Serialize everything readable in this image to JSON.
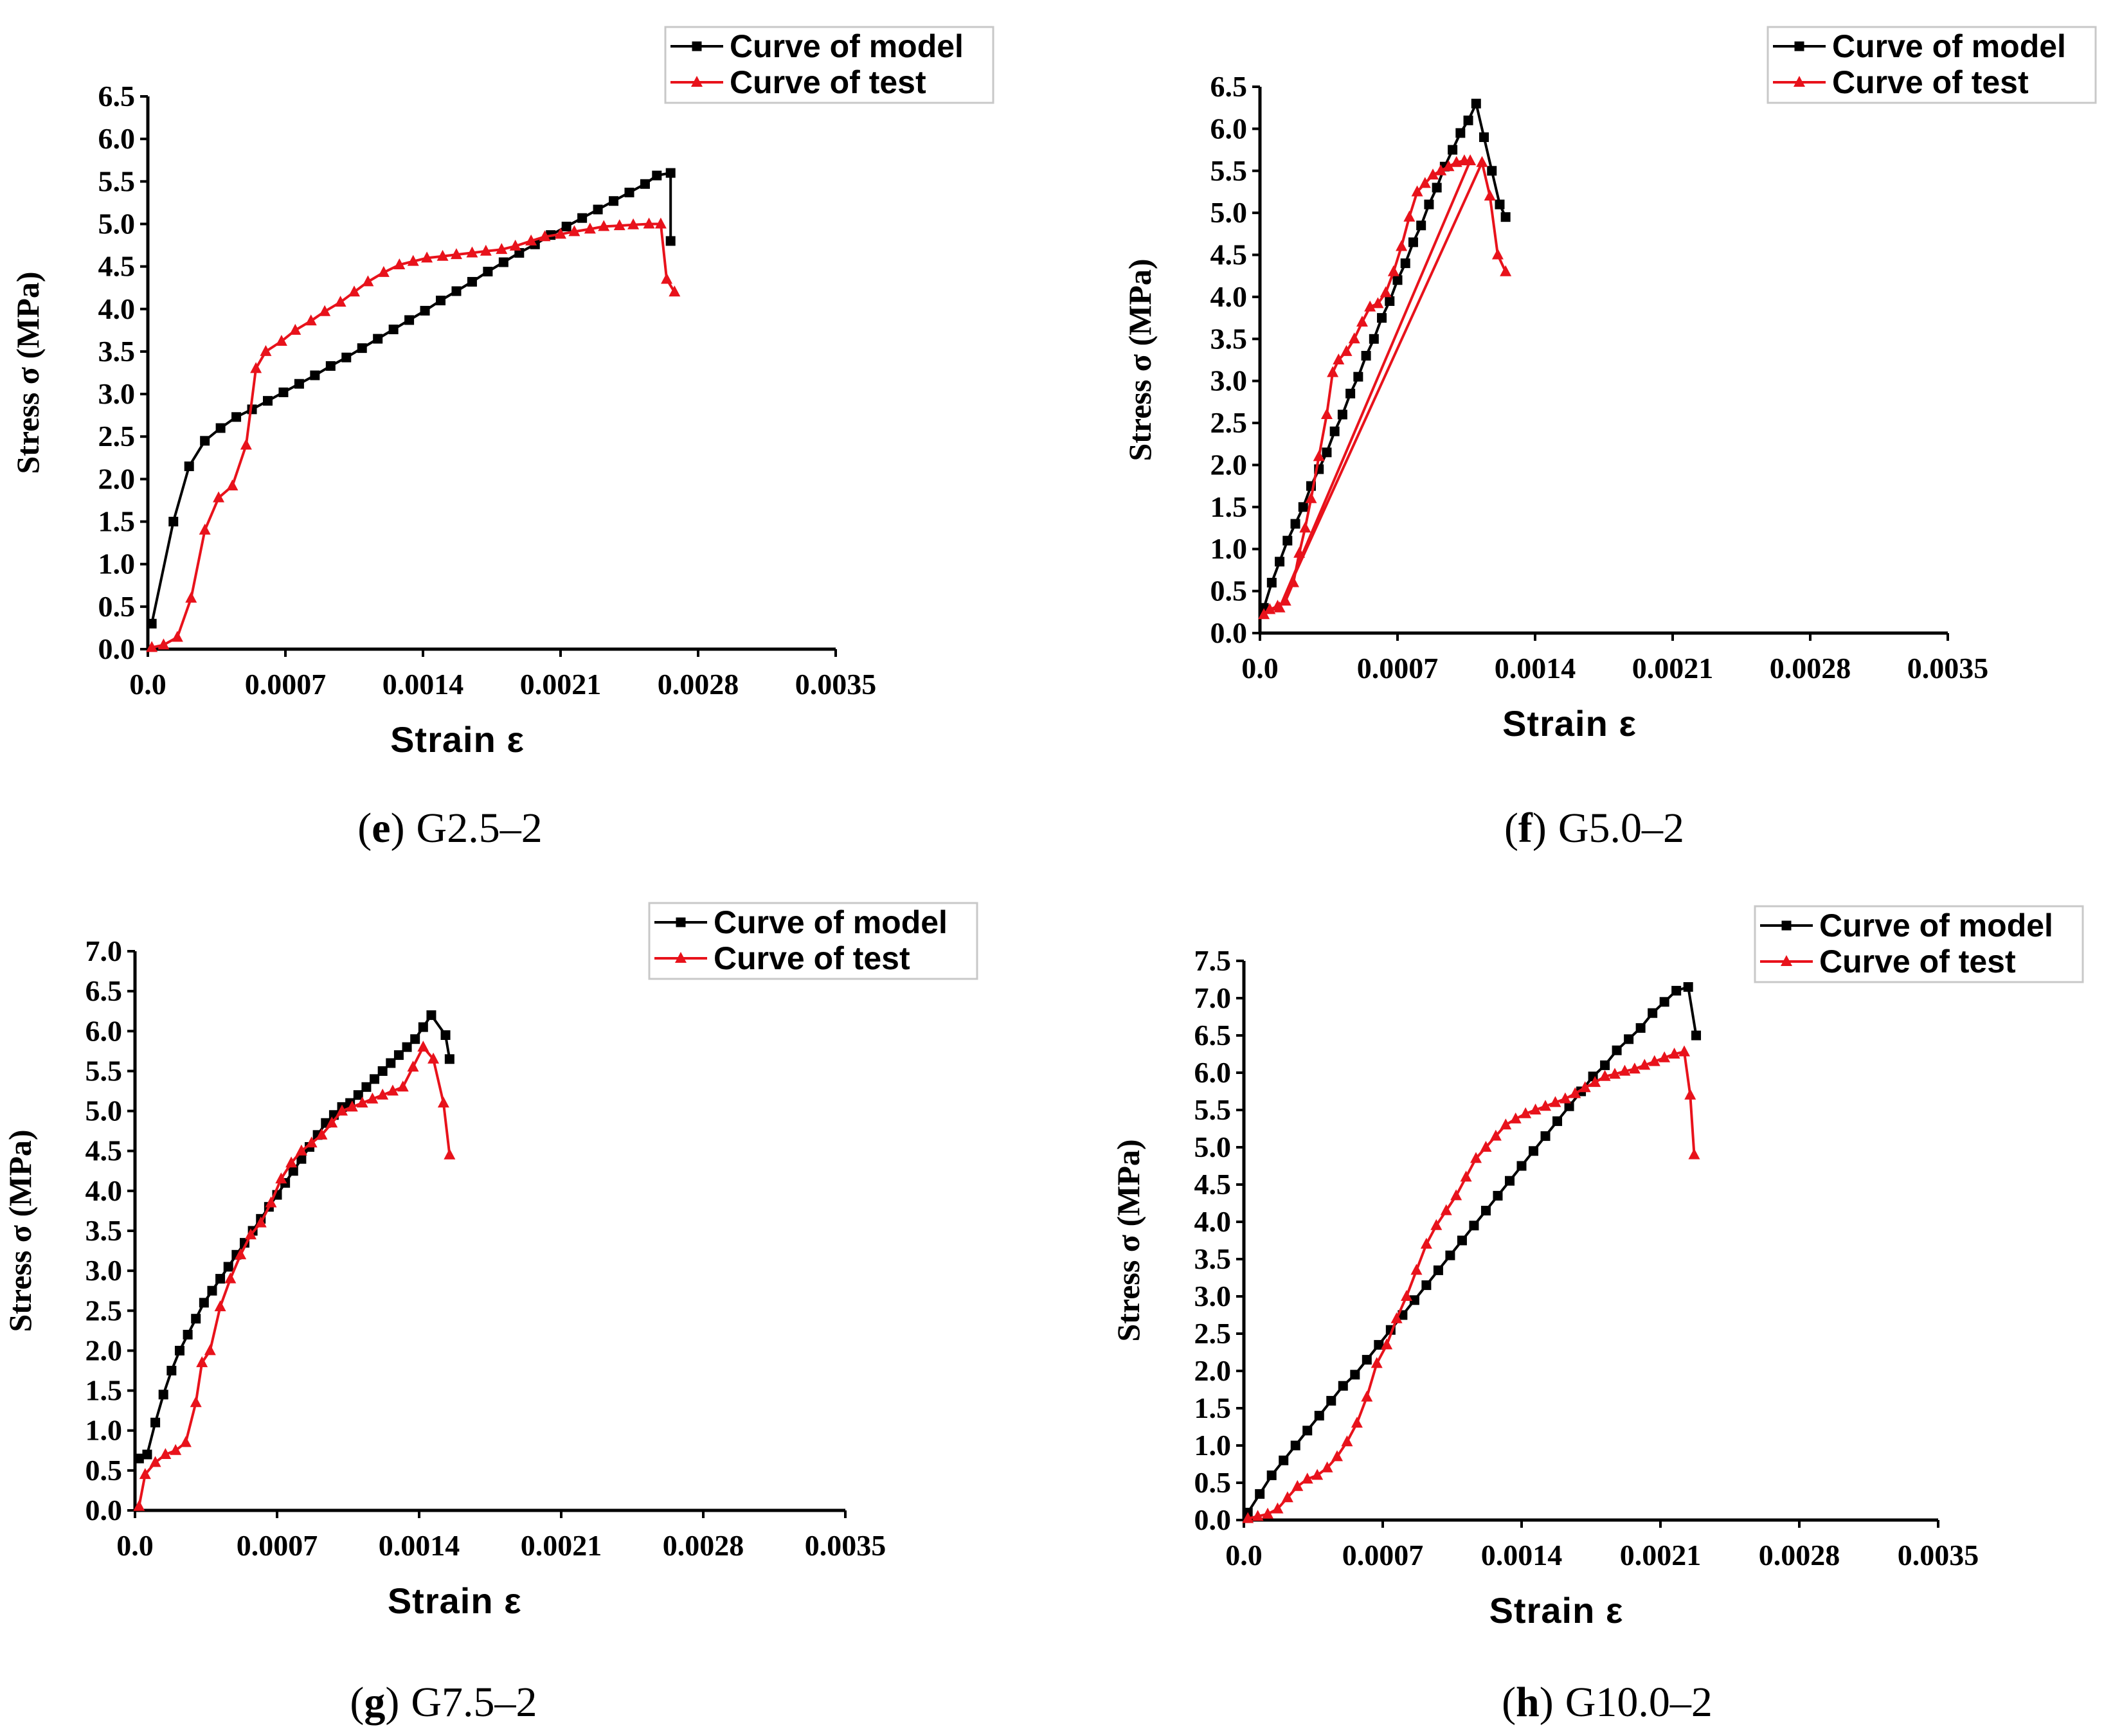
{
  "figure": {
    "caption_separator": ")"
  },
  "colors": {
    "model": "#000000",
    "test": "#e8121b",
    "axis": "#000000"
  },
  "chart_data": [
    {
      "type": "line",
      "panel": "e",
      "caption": "G2.5–2",
      "xlabel": "Strain ε",
      "ylabel": "Stress σ (MPa)",
      "xlim": [
        0,
        0.0035
      ],
      "ylim": [
        0,
        6.5
      ],
      "xticks": [
        "0.0",
        "0.0007",
        "0.0014",
        "0.0021",
        "0.0028",
        "0.0035"
      ],
      "yticks": [
        "0.0",
        "0.5",
        "1.0",
        "1.5",
        "2.0",
        "2.5",
        "3.0",
        "3.5",
        "4.0",
        "4.5",
        "5.0",
        "5.5",
        "6.0",
        "6.5"
      ],
      "legend": {
        "placement": "top-right",
        "entries": [
          "Curve of model",
          "Curve of test"
        ]
      },
      "series": [
        {
          "name": "Curve of model",
          "marker": "square",
          "x": [
            2e-05,
            0.00013,
            0.00021,
            0.00029,
            0.00037,
            0.00045,
            0.00053,
            0.00061,
            0.00069,
            0.00077,
            0.00085,
            0.00093,
            0.00101,
            0.00109,
            0.00117,
            0.00125,
            0.00133,
            0.00141,
            0.00149,
            0.00157,
            0.00165,
            0.00173,
            0.00181,
            0.00189,
            0.00197,
            0.00205,
            0.00213,
            0.00221,
            0.00229,
            0.00237,
            0.00245,
            0.00253,
            0.00259,
            0.00266,
            0.00266
          ],
          "y": [
            0.3,
            1.5,
            2.15,
            2.45,
            2.6,
            2.73,
            2.82,
            2.92,
            3.02,
            3.12,
            3.22,
            3.33,
            3.43,
            3.54,
            3.65,
            3.76,
            3.87,
            3.98,
            4.1,
            4.21,
            4.32,
            4.44,
            4.55,
            4.66,
            4.76,
            4.87,
            4.97,
            5.07,
            5.17,
            5.27,
            5.37,
            5.47,
            5.57,
            5.6,
            4.8
          ]
        },
        {
          "name": "Curve of test",
          "marker": "triangle",
          "x": [
            2e-05,
            8e-05,
            0.00015,
            0.00022,
            0.00029,
            0.00036,
            0.00043,
            0.0005,
            0.00055,
            0.0006,
            0.00068,
            0.00075,
            0.00083,
            0.0009,
            0.00098,
            0.00105,
            0.00112,
            0.0012,
            0.00128,
            0.00135,
            0.00142,
            0.0015,
            0.00157,
            0.00165,
            0.00172,
            0.0018,
            0.00187,
            0.00195,
            0.00202,
            0.0021,
            0.00217,
            0.00225,
            0.00232,
            0.0024,
            0.00247,
            0.00255,
            0.00261,
            0.00264,
            0.00268
          ],
          "y": [
            0.02,
            0.05,
            0.14,
            0.6,
            1.4,
            1.78,
            1.92,
            2.4,
            3.3,
            3.5,
            3.62,
            3.75,
            3.86,
            3.97,
            4.08,
            4.2,
            4.32,
            4.43,
            4.52,
            4.56,
            4.6,
            4.62,
            4.64,
            4.66,
            4.68,
            4.7,
            4.74,
            4.8,
            4.85,
            4.88,
            4.91,
            4.94,
            4.97,
            4.98,
            4.99,
            5.0,
            5.0,
            4.35,
            4.2
          ]
        }
      ]
    },
    {
      "type": "line",
      "panel": "f",
      "caption": "G5.0–2",
      "xlabel": "Strain ε",
      "ylabel": "Stress σ (MPa)",
      "xlim": [
        0,
        0.0035
      ],
      "ylim": [
        0,
        6.5
      ],
      "xticks": [
        "0.0",
        "0.0007",
        "0.0014",
        "0.0021",
        "0.0028",
        "0.0035"
      ],
      "yticks": [
        "0.0",
        "0.5",
        "1.0",
        "1.5",
        "2.0",
        "2.5",
        "3.0",
        "3.5",
        "4.0",
        "4.5",
        "5.0",
        "5.5",
        "6.0",
        "6.5"
      ],
      "legend": {
        "placement": "top-right",
        "entries": [
          "Curve of model",
          "Curve of test"
        ]
      },
      "series": [
        {
          "name": "Curve of model",
          "marker": "square",
          "x": [
            2e-05,
            6e-05,
            0.0001,
            0.00014,
            0.00018,
            0.00022,
            0.00026,
            0.0003,
            0.00034,
            0.00038,
            0.00042,
            0.00046,
            0.0005,
            0.00054,
            0.00058,
            0.00062,
            0.00066,
            0.0007,
            0.00074,
            0.00078,
            0.00082,
            0.00086,
            0.0009,
            0.00094,
            0.00098,
            0.00102,
            0.00106,
            0.0011,
            0.00114,
            0.00118,
            0.00122,
            0.00125
          ],
          "y": [
            0.3,
            0.6,
            0.85,
            1.1,
            1.3,
            1.5,
            1.75,
            1.95,
            2.15,
            2.4,
            2.6,
            2.85,
            3.05,
            3.3,
            3.5,
            3.75,
            3.95,
            4.2,
            4.4,
            4.65,
            4.85,
            5.1,
            5.3,
            5.55,
            5.75,
            5.95,
            6.1,
            6.3,
            5.9,
            5.5,
            5.1,
            4.95
          ]
        },
        {
          "name": "Curve of test",
          "marker": "triangle",
          "x": [
            2e-05,
            5e-05,
            9e-05,
            0.00013,
            0.00017,
            0.0002,
            0.00023,
            0.00026,
            0.0003,
            0.00034,
            0.00037,
            0.0004,
            0.00044,
            0.00048,
            0.00052,
            0.00056,
            0.0006,
            0.00064,
            0.00068,
            0.00072,
            0.00076,
            0.0008,
            0.00084,
            0.00088,
            0.00092,
            0.00096,
            0.001,
            0.00104,
            0.00107,
            0.0001,
            0.00113,
            0.00117,
            0.00121,
            0.00125
          ],
          "y": [
            0.22,
            0.28,
            0.32,
            0.38,
            0.6,
            0.95,
            1.25,
            1.6,
            2.1,
            2.6,
            3.1,
            3.25,
            3.35,
            3.5,
            3.7,
            3.88,
            3.92,
            4.05,
            4.3,
            4.6,
            4.95,
            5.25,
            5.35,
            5.45,
            5.5,
            5.55,
            5.6,
            5.62,
            5.62,
            0.3,
            5.6,
            5.2,
            4.5,
            4.3
          ]
        }
      ]
    },
    {
      "type": "line",
      "panel": "g",
      "caption": "G7.5–2",
      "xlabel": "Strain ε",
      "ylabel": "Stress σ (MPa)",
      "xlim": [
        0,
        0.0035
      ],
      "ylim": [
        0,
        7.0
      ],
      "xticks": [
        "0.0",
        "0.0007",
        "0.0014",
        "0.0021",
        "0.0028",
        "0.0035"
      ],
      "yticks": [
        "0.0",
        "0.5",
        "1.0",
        "1.5",
        "2.0",
        "2.5",
        "3.0",
        "3.5",
        "4.0",
        "4.5",
        "5.0",
        "5.5",
        "6.0",
        "6.5",
        "7.0"
      ],
      "legend": {
        "placement": "top-right",
        "entries": [
          "Curve of model",
          "Curve of test"
        ]
      },
      "series": [
        {
          "name": "Curve of model",
          "marker": "square",
          "x": [
            2e-05,
            6e-05,
            0.0001,
            0.00014,
            0.00018,
            0.00022,
            0.00026,
            0.0003,
            0.00034,
            0.00038,
            0.00042,
            0.00046,
            0.0005,
            0.00054,
            0.00058,
            0.00062,
            0.00066,
            0.0007,
            0.00074,
            0.00078,
            0.00082,
            0.00086,
            0.0009,
            0.00094,
            0.00098,
            0.00102,
            0.00106,
            0.0011,
            0.00114,
            0.00118,
            0.00122,
            0.00126,
            0.0013,
            0.00134,
            0.00138,
            0.00142,
            0.00146,
            0.00153,
            0.00155
          ],
          "y": [
            0.65,
            0.7,
            1.1,
            1.45,
            1.75,
            2.0,
            2.2,
            2.4,
            2.6,
            2.75,
            2.9,
            3.05,
            3.2,
            3.35,
            3.5,
            3.65,
            3.8,
            3.95,
            4.1,
            4.25,
            4.4,
            4.55,
            4.7,
            4.85,
            4.95,
            5.05,
            5.1,
            5.2,
            5.3,
            5.4,
            5.5,
            5.6,
            5.7,
            5.8,
            5.9,
            6.05,
            6.2,
            5.95,
            5.65
          ]
        },
        {
          "name": "Curve of test",
          "marker": "triangle",
          "x": [
            2e-05,
            5e-05,
            0.0001,
            0.00015,
            0.0002,
            0.00025,
            0.0003,
            0.00033,
            0.00037,
            0.00042,
            0.00047,
            0.00052,
            0.00057,
            0.00062,
            0.00067,
            0.00072,
            0.00077,
            0.00082,
            0.00087,
            0.00092,
            0.00097,
            0.00102,
            0.00107,
            0.00112,
            0.00117,
            0.00122,
            0.00127,
            0.00132,
            0.00137,
            0.00142,
            0.00147,
            0.00152,
            0.00155
          ],
          "y": [
            0.05,
            0.45,
            0.6,
            0.7,
            0.75,
            0.85,
            1.35,
            1.85,
            2.0,
            2.55,
            2.9,
            3.2,
            3.45,
            3.6,
            3.85,
            4.15,
            4.35,
            4.5,
            4.6,
            4.7,
            4.85,
            5.0,
            5.05,
            5.1,
            5.15,
            5.2,
            5.25,
            5.3,
            5.55,
            5.8,
            5.65,
            5.1,
            4.45
          ]
        }
      ]
    },
    {
      "type": "line",
      "panel": "h",
      "caption": "G10.0–2",
      "xlabel": "Strain ε",
      "ylabel": "Stress σ (MPa)",
      "xlim": [
        0,
        0.0035
      ],
      "ylim": [
        0,
        7.5
      ],
      "xticks": [
        "0.0",
        "0.0007",
        "0.0014",
        "0.0021",
        "0.0028",
        "0.0035"
      ],
      "yticks": [
        "0.0",
        "0.5",
        "1.0",
        "1.5",
        "2.0",
        "2.5",
        "3.0",
        "3.5",
        "4.0",
        "4.5",
        "5.0",
        "5.5",
        "6.0",
        "6.5",
        "7.0",
        "7.5"
      ],
      "legend": {
        "placement": "top-right",
        "entries": [
          "Curve of model",
          "Curve of test"
        ]
      },
      "series": [
        {
          "name": "Curve of model",
          "marker": "square",
          "x": [
            2e-05,
            8e-05,
            0.00014,
            0.0002,
            0.00026,
            0.00032,
            0.00038,
            0.00044,
            0.0005,
            0.00056,
            0.00062,
            0.00068,
            0.00074,
            0.0008,
            0.00086,
            0.00092,
            0.00098,
            0.00104,
            0.0011,
            0.00116,
            0.00122,
            0.00128,
            0.00134,
            0.0014,
            0.00146,
            0.00152,
            0.00158,
            0.00164,
            0.0017,
            0.00176,
            0.00182,
            0.00188,
            0.00194,
            0.002,
            0.00206,
            0.00212,
            0.00218,
            0.00224,
            0.00228
          ],
          "y": [
            0.1,
            0.35,
            0.6,
            0.8,
            1.0,
            1.2,
            1.4,
            1.6,
            1.8,
            1.95,
            2.15,
            2.35,
            2.55,
            2.75,
            2.95,
            3.15,
            3.35,
            3.55,
            3.75,
            3.95,
            4.15,
            4.35,
            4.55,
            4.75,
            4.95,
            5.15,
            5.35,
            5.55,
            5.75,
            5.95,
            6.1,
            6.3,
            6.45,
            6.6,
            6.8,
            6.95,
            7.1,
            7.15,
            6.5
          ]
        },
        {
          "name": "Curve of test",
          "marker": "triangle",
          "x": [
            2e-05,
            7e-05,
            0.00012,
            0.00017,
            0.00022,
            0.00027,
            0.00032,
            0.00037,
            0.00042,
            0.00047,
            0.00052,
            0.00057,
            0.00062,
            0.00067,
            0.00072,
            0.00077,
            0.00082,
            0.00087,
            0.00092,
            0.00097,
            0.00102,
            0.00107,
            0.00112,
            0.00117,
            0.00122,
            0.00127,
            0.00132,
            0.00137,
            0.00142,
            0.00147,
            0.00152,
            0.00157,
            0.00162,
            0.00167,
            0.00172,
            0.00177,
            0.00182,
            0.00187,
            0.00192,
            0.00197,
            0.00202,
            0.00207,
            0.00212,
            0.00217,
            0.00222,
            0.00225,
            0.00227
          ],
          "y": [
            0.02,
            0.05,
            0.08,
            0.15,
            0.3,
            0.45,
            0.55,
            0.6,
            0.7,
            0.85,
            1.05,
            1.3,
            1.65,
            2.1,
            2.35,
            2.7,
            3.0,
            3.35,
            3.7,
            3.95,
            4.15,
            4.35,
            4.6,
            4.85,
            5.0,
            5.15,
            5.3,
            5.38,
            5.45,
            5.5,
            5.55,
            5.6,
            5.65,
            5.72,
            5.8,
            5.87,
            5.95,
            5.98,
            6.02,
            6.05,
            6.1,
            6.15,
            6.2,
            6.25,
            6.28,
            5.7,
            4.9
          ]
        }
      ]
    }
  ]
}
